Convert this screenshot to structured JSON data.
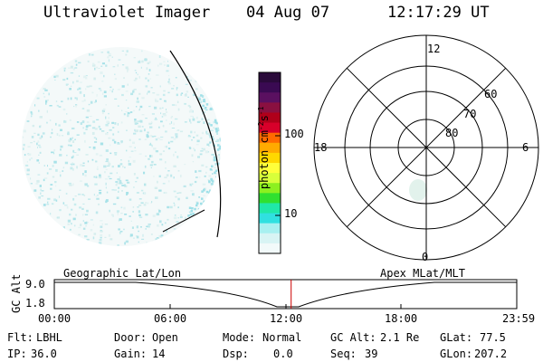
{
  "header": {
    "title": "Ultraviolet Imager",
    "date": "04 Aug 07",
    "time": "12:17:29 UT"
  },
  "colorbar": {
    "unit_prefix": "photon cm",
    "unit_exp1": "-2",
    "unit_mid": "s",
    "unit_exp2": "-1",
    "ticks": [
      "100",
      "10"
    ],
    "colors": [
      "#2a0a3a",
      "#3a0a52",
      "#5a1060",
      "#8a1040",
      "#b0001a",
      "#d8002a",
      "#ff6a00",
      "#ffaa00",
      "#ffd800",
      "#ffff3a",
      "#d8ff3a",
      "#8cf020",
      "#30e030",
      "#20e8a8",
      "#30e0e0",
      "#a8f0f0",
      "#d8f4f4",
      "#f2fafa"
    ]
  },
  "polar_plot": {
    "mlt_labels": {
      "top": "12",
      "left": "18",
      "right": "6",
      "bottom": "0"
    },
    "lat_labels": [
      "60",
      "70",
      "80"
    ]
  },
  "timeline": {
    "axis_label": "GC Alt",
    "alt_max": "9.0",
    "alt_min": "1.8",
    "left_title": "Geographic Lat/Lon",
    "right_title": "Apex MLat/MLT",
    "ticks": [
      "00:00",
      "06:00",
      "12:00",
      "18:00",
      "23:59"
    ],
    "current_fraction": 0.5121
  },
  "status": {
    "flt_label": "Flt:",
    "flt_value": "LBHL",
    "ip_label": "IP:",
    "ip_value": "36.0",
    "door_label": "Door:",
    "door_value": "Open",
    "gain_label": "Gain:",
    "gain_value": "14",
    "mode_label": "Mode:",
    "mode_value": "Normal",
    "dsp_label": "Dsp:",
    "dsp_value": "0.0",
    "gcalt_label": "GC Alt:",
    "gcalt_value": "2.1 Re",
    "seq_label": "Seq:",
    "seq_value": "39",
    "glat_label": "GLat:",
    "glat_value": "77.5",
    "glon_label": "GLon:",
    "glon_value": "207.2"
  }
}
